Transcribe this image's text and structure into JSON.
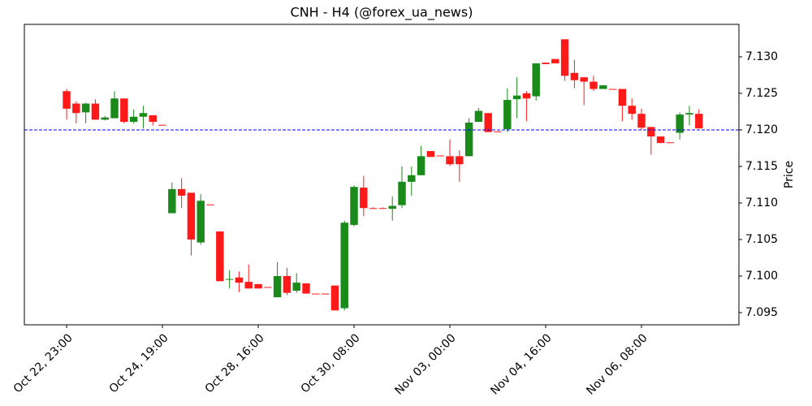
{
  "chart_data": {
    "type": "candlestick",
    "title": "CNH - H4 (@forex_ua_news)",
    "y_label": "Price",
    "x": [
      0,
      1,
      2,
      3,
      4,
      5,
      6,
      7,
      8,
      9,
      10,
      11,
      12,
      13,
      14,
      15,
      16,
      17,
      18,
      19,
      20,
      21,
      22,
      23,
      24,
      25,
      26,
      27,
      28,
      29,
      30,
      31,
      32,
      33,
      34,
      35,
      36,
      37,
      38,
      39,
      40,
      41,
      42,
      43,
      44,
      45,
      46,
      47,
      48,
      49,
      50,
      51,
      52,
      53,
      54,
      55,
      56,
      57,
      58,
      59,
      60,
      61,
      62,
      63,
      64,
      65,
      66
    ],
    "open": [
      7.1253,
      7.1236,
      7.1224,
      7.1236,
      7.1214,
      7.1216,
      7.1243,
      7.1211,
      7.1218,
      7.122,
      7.1207,
      7.1086,
      7.1119,
      7.1114,
      7.1046,
      7.1098,
      7.1061,
      7.0995,
      7.0998,
      7.0992,
      7.0989,
      7.0985,
      7.0971,
      7.1,
      7.098,
      7.099,
      7.0976,
      7.0976,
      7.0987,
      7.0956,
      7.107,
      7.1121,
      7.1093,
      7.1093,
      7.1092,
      7.1097,
      7.1129,
      7.1138,
      7.1171,
      7.1165,
      7.1164,
      7.1164,
      7.1164,
      7.1211,
      7.1223,
      7.1198,
      7.1201,
      7.1242,
      7.125,
      7.1246,
      7.1292,
      7.1297,
      7.1324,
      7.1278,
      7.1272,
      7.1266,
      7.1256,
      7.1256,
      7.1256,
      7.1233,
      7.1222,
      7.1204,
      7.1191,
      7.1183,
      7.1196,
      7.1221,
      7.1222
    ],
    "high": [
      7.1256,
      7.1239,
      7.1237,
      7.1242,
      7.1219,
      7.1253,
      7.1243,
      7.1228,
      7.1233,
      7.122,
      7.1207,
      7.1128,
      7.1134,
      7.1114,
      7.1112,
      7.1098,
      7.1061,
      7.1008,
      7.1006,
      7.1016,
      7.0989,
      7.0985,
      7.1019,
      7.1011,
      7.1004,
      7.099,
      7.0976,
      7.0976,
      7.0987,
      7.1076,
      7.1124,
      7.1137,
      7.1094,
      7.1094,
      7.1109,
      7.115,
      7.115,
      7.1178,
      7.1171,
      7.1165,
      7.1187,
      7.1172,
      7.1216,
      7.123,
      7.1223,
      7.1198,
      7.1257,
      7.1272,
      7.1253,
      7.1291,
      7.1292,
      7.1297,
      7.1324,
      7.1296,
      7.1272,
      7.1274,
      7.1261,
      7.1256,
      7.1256,
      7.1243,
      7.1229,
      7.1204,
      7.1191,
      7.1183,
      7.1224,
      7.1233,
      7.1228
    ],
    "low": [
      7.1214,
      7.1209,
      7.1209,
      7.1214,
      7.1213,
      7.1216,
      7.1209,
      7.1209,
      7.1202,
      7.1206,
      7.1206,
      7.1086,
      7.1093,
      7.1028,
      7.1043,
      7.1097,
      7.0993,
      7.0983,
      7.0978,
      7.0983,
      7.0983,
      7.0984,
      7.0971,
      7.0974,
      7.0977,
      7.0976,
      7.0975,
      7.0975,
      7.0953,
      7.0953,
      7.1068,
      7.1082,
      7.1092,
      7.1092,
      7.1076,
      7.1093,
      7.111,
      7.1138,
      7.1163,
      7.1164,
      7.1151,
      7.1129,
      7.1164,
      7.1211,
      7.1197,
      7.1197,
      7.1197,
      7.1216,
      7.1212,
      7.124,
      7.129,
      7.1291,
      7.1267,
      7.1257,
      7.1234,
      7.1253,
      7.1256,
      7.1255,
      7.1212,
      7.1214,
      7.12,
      7.1166,
      7.1182,
      7.1182,
      7.1187,
      7.1206,
      7.1202
    ],
    "close": [
      7.1229,
      7.1223,
      7.1236,
      7.1214,
      7.1217,
      7.1243,
      7.1211,
      7.1218,
      7.1223,
      7.1211,
      7.1206,
      7.1119,
      7.111,
      7.105,
      7.1103,
      7.1097,
      7.0993,
      7.0996,
      7.0991,
      7.0983,
      7.0983,
      7.0984,
      7.1,
      7.0977,
      7.0991,
      7.0976,
      7.0975,
      7.0975,
      7.0953,
      7.1073,
      7.1122,
      7.1093,
      7.1092,
      7.1092,
      7.1096,
      7.1129,
      7.1138,
      7.1164,
      7.1163,
      7.1164,
      7.1153,
      7.1153,
      7.121,
      7.1226,
      7.1197,
      7.1197,
      7.1241,
      7.1247,
      7.1243,
      7.1291,
      7.129,
      7.1291,
      7.1274,
      7.1268,
      7.1266,
      7.1256,
      7.1261,
      7.1255,
      7.1233,
      7.1222,
      7.1203,
      7.1191,
      7.1182,
      7.1182,
      7.1221,
      7.1223,
      7.1202
    ],
    "up_color": "#1a8a1a",
    "down_color": "#ff1a1a",
    "hline": {
      "value": 7.12,
      "color": "#0000ff"
    },
    "xlim": [
      -4.41,
      70.17
    ],
    "xticks": [
      {
        "value": 0,
        "label": "Oct 22, 23:00"
      },
      {
        "value": 10,
        "label": "Oct 24, 19:00"
      },
      {
        "value": 20,
        "label": "Oct 28, 16:00"
      },
      {
        "value": 30,
        "label": "Oct 30, 08:00"
      },
      {
        "value": 40,
        "label": "Nov 03, 00:00"
      },
      {
        "value": 50,
        "label": "Nov 04, 16:00"
      },
      {
        "value": 60,
        "label": "Nov 06, 08:00"
      }
    ],
    "ylim": [
      7.09333,
      7.13444
    ],
    "yticks": [
      7.095,
      {
        "value": 7.1,
        "label": "7.100"
      },
      7.105,
      {
        "value": 7.11,
        "label": "7.110"
      },
      7.115,
      {
        "value": 7.12,
        "label": "7.120"
      },
      7.125,
      {
        "value": 7.13,
        "label": "7.130"
      }
    ]
  }
}
